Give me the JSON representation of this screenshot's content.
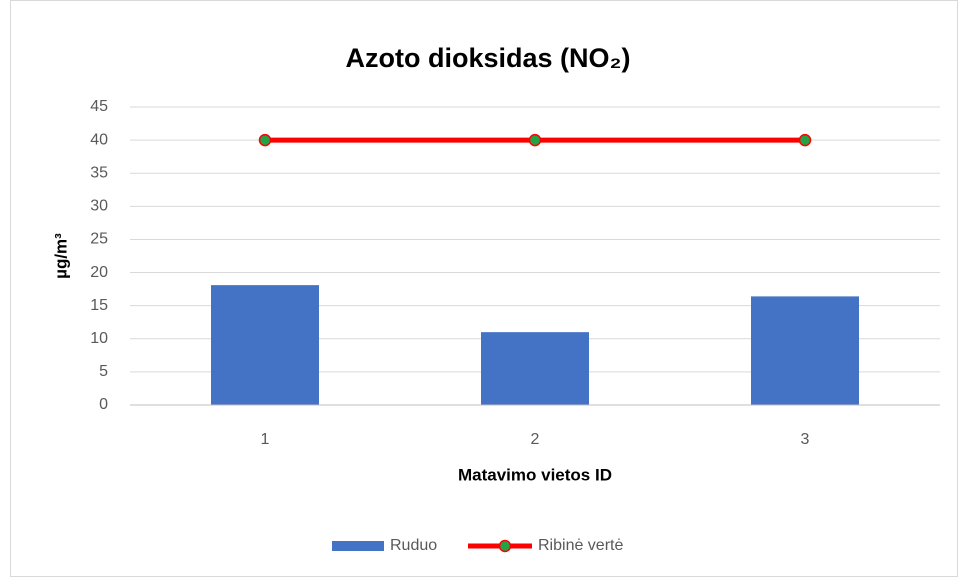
{
  "chart_data": {
    "type": "bar",
    "title": "Azoto dioksidas (NO₂)",
    "x_label": "Matavimo vietos ID",
    "y_label": "µg/m³",
    "categories": [
      "1",
      "2",
      "3"
    ],
    "series": [
      {
        "name": "Ruduo",
        "type": "bar",
        "color": "#4472c4",
        "values": [
          18.1,
          11,
          16.4
        ]
      },
      {
        "name": "Ribinė vertė",
        "type": "line",
        "color": "#ff0000",
        "marker_color": "#22a347",
        "values": [
          40,
          40,
          40
        ]
      }
    ],
    "ylim": [
      0,
      45
    ],
    "yticks": [
      0,
      5,
      10,
      15,
      20,
      25,
      30,
      35,
      40,
      45
    ],
    "grid": true,
    "legend": "bottom"
  }
}
